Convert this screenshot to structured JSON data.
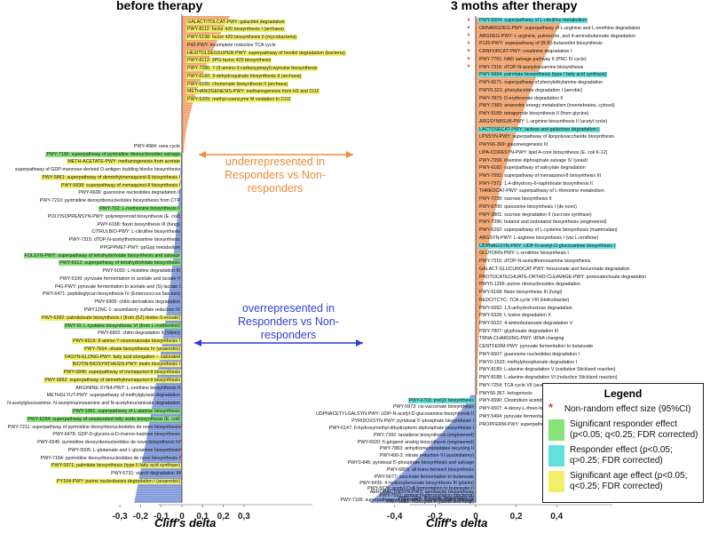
{
  "chart_data": [
    {
      "type": "bar",
      "orientation": "horizontal",
      "title": "before therapy",
      "xlabel": "Cliff's delta",
      "xlim": [
        -0.35,
        0.3
      ],
      "xticks": [
        "-0,3",
        "-0,2",
        "-0,1",
        "0",
        "0,1",
        "0,2",
        "0,3"
      ],
      "xtick_values": [
        -0.3,
        -0.2,
        -0.1,
        0,
        0.1,
        0.2,
        0.3
      ],
      "n_bars": 270,
      "max_positive": 0.23,
      "max_negative": -0.23,
      "positive_color": "#f2a36b",
      "negative_color": "#7d96d8",
      "labels": [
        {
          "text": "GALACTITOLCAT-PWY: galactitol degradation",
          "hl": "yellow",
          "rank": 0.012
        },
        {
          "text": "PWY-8112: factor 420 biosynthesis I (archaea)",
          "hl": "yellow",
          "rank": 0.028
        },
        {
          "text": "PWY-5198: factor 420 biosynthesis II (mycobacteria)",
          "hl": "yellow",
          "rank": 0.044
        },
        {
          "text": "P42-PWY: incomplete reductive TCA cycle",
          "hl": "",
          "rank": 0.06
        },
        {
          "text": "HEXITOLDEGSUPER-PWY: superpathway of hexitol degradation (bacteria)",
          "hl": "yellow",
          "rank": 0.076
        },
        {
          "text": "PWY-8113: 3PG-factor 420 biosynthesis",
          "hl": "yellow",
          "rank": 0.092
        },
        {
          "text": "PWY-7286: 7-(3-amino-3-carboxypropyl)-wyosine biosynthesis",
          "hl": "yellow",
          "rank": 0.108
        },
        {
          "text": "PWY-6160: 3-dehydroquinate biosynthesis II (archaea)",
          "hl": "yellow",
          "rank": 0.124
        },
        {
          "text": "PWY-6165: chorismate biosynthesis II (archaea)",
          "hl": "yellow",
          "rank": 0.14
        },
        {
          "text": "METHANOGENESIS-PWY: methanogenesis from H2 and CO2",
          "hl": "yellow",
          "rank": 0.156
        },
        {
          "text": "PWY-5209: methyl-coenzyme M oxidation to CO2",
          "hl": "yellow",
          "rank": 0.172
        },
        {
          "text": "PWY-4984: urea cycle",
          "hl": "",
          "rank": 0.268
        },
        {
          "text": "PWY-7196: superpathway of pyrimidine ribonucleosides salvage",
          "hl": "green",
          "rank": 0.284
        },
        {
          "text": "METH-ACETATE-PWY: methanogenesis from acetate",
          "hl": "yellow",
          "rank": 0.3
        },
        {
          "text": "superpathway of GDP-mannose-derived O-antigen building blocks biosynthesis",
          "hl": "",
          "rank": 0.316
        },
        {
          "text": "PWY-5861: superpathway of demethylmenaquinol-8 biosynthesis I",
          "hl": "yellow",
          "rank": 0.332
        },
        {
          "text": "PWY-5838: superpathway of menaquinol-8 biosynthesis I",
          "hl": "yellow",
          "rank": 0.348
        },
        {
          "text": "PWY-6606: guanosine nucleotides degradation II",
          "hl": "",
          "rank": 0.364
        },
        {
          "text": "PWY-7210: pyrimidine deoxyribonucleotides biosynthesis from CTP",
          "hl": "",
          "rank": 0.38
        },
        {
          "text": "PWY-702: L-methionine biosynthesis II",
          "hl": "green",
          "rank": 0.396
        },
        {
          "text": "POLYISOPRENSYN-PWY: polyisoprenoid biosynthesis (E. coli)",
          "hl": "",
          "rank": 0.412
        },
        {
          "text": "PWY-6168: flavin biosynthesis III (fungi)",
          "hl": "",
          "rank": 0.428
        },
        {
          "text": "CITRULBIO-PWY: L-citrulline biosynthesis",
          "hl": "",
          "rank": 0.444
        },
        {
          "text": "PWY-7315: dTDP-N-acetylthomosamine biosynthesis",
          "hl": "",
          "rank": 0.46
        },
        {
          "text": "PPGPPMET-PWY: ppGpp metabolism",
          "hl": "",
          "rank": 0.476
        },
        {
          "text": "FOLSYN-PWY: superpathway of tetrahydrofolate biosynthesis and salvage",
          "hl": "green",
          "rank": 0.492
        },
        {
          "text": "PWY-6612: superpathway of tetrahydrofolate biosynthesis",
          "hl": "green",
          "rank": 0.508
        },
        {
          "text": "PWY-5030: L-histidine degradation III",
          "hl": "",
          "rank": 0.524
        },
        {
          "text": "PWY-5100: pyruvate fermentation to acetate and lactate II",
          "hl": "",
          "rank": 0.54
        },
        {
          "text": "P41-PWY: pyruvate fermentation to acetate and (S)-lactate I",
          "hl": "",
          "rank": 0.556
        },
        {
          "text": "PWY-6471: peptidoglycan biosynthesis IV (Enterococcus faecium)",
          "hl": "",
          "rank": 0.572
        },
        {
          "text": "PWY-6906: chitin derivatives degradation",
          "hl": "",
          "rank": 0.588
        },
        {
          "text": "PWY1ZNC-1: assimilatory sulfate reduction IV",
          "hl": "",
          "rank": 0.604
        },
        {
          "text": "PWY-6282: palmitoleate biosynthesis I (from (5Z)-dodec-5-enoate)",
          "hl": "yellow",
          "rank": 0.62
        },
        {
          "text": "PWY-I9: L-cysteine biosynthesis VI (from L-methionine)",
          "hl": "green",
          "rank": 0.636
        },
        {
          "text": "PWY-6902: chitin degradation II (Vibrio)",
          "hl": "",
          "rank": 0.652
        },
        {
          "text": "PWY-6519: 8-amino-7-oxononanoate biosynthesis I",
          "hl": "yellow",
          "rank": 0.668
        },
        {
          "text": "PWY-7664: oleate biosynthesis IV (anaerobic)",
          "hl": "yellow",
          "rank": 0.684
        },
        {
          "text": "FASYN-ELONG-PWY: fatty acid elongation -- saturated",
          "hl": "yellow",
          "rank": 0.7
        },
        {
          "text": "BIOTIN-BIOSYNTHESIS-PWY: biotin biosynthesis I",
          "hl": "yellow",
          "rank": 0.716
        },
        {
          "text": "PWY-5845: superpathway of menaquinol-9 biosynthesis",
          "hl": "yellow",
          "rank": 0.732
        },
        {
          "text": "PWY-5862: superpathway of demethylmenaquinol-9 biosynthesis",
          "hl": "yellow",
          "rank": 0.748
        },
        {
          "text": "ARGININE-SYN4-PWY: L-ornithine biosynthesis II",
          "hl": "",
          "rank": 0.764
        },
        {
          "text": "METHGLYUT-PWY: superpathway of methylglyoxal degradation",
          "hl": "",
          "rank": 0.78
        },
        {
          "text": "N-acetylglucosamine, N-acetylmannosamine and N-acetylneuraminate degradation",
          "hl": "",
          "rank": 0.796
        },
        {
          "text": "PWY-1061: superpathway of L-alanine biosynthesis",
          "hl": "green",
          "rank": 0.812
        },
        {
          "text": "PWY-6284: superpathway of unsaturated fatty acids biosynthesis (E. coli)",
          "hl": "green",
          "rank": 0.828
        },
        {
          "text": "PWY-7211: superpathway of pyrimidine deoxyribonucleotides de novo biosynthesis",
          "hl": "",
          "rank": 0.844
        },
        {
          "text": "PWY-6478: GDP-D-glycero-α-D-manno-heptose biosynthesis",
          "hl": "",
          "rank": 0.86
        },
        {
          "text": "PWY-6545: pyrimidine deoxyribonucleotides de novo biosynthesis IV",
          "hl": "",
          "rank": 0.876
        },
        {
          "text": "PWY-5505: L-glutamate and L-glutamine biosynthesis",
          "hl": "",
          "rank": 0.892
        },
        {
          "text": "PWY-7184: pyrimidine deoxyribonucleotides de novo biosynthesis I",
          "hl": "",
          "rank": 0.908
        },
        {
          "text": "PWY-5971: palmitate biosynthesis (type II fatty acid synthase)",
          "hl": "yellow",
          "rank": 0.924
        },
        {
          "text": "PWY-6731: starch degradation III",
          "hl": "",
          "rank": 0.94
        },
        {
          "text": "PY164-PWY: purine nucleobases degradation I (anaerobic)",
          "hl": "yellow",
          "rank": 0.956
        }
      ],
      "significant_markers": [
        0.846,
        0.876,
        0.891,
        0.908,
        0.924,
        0.94,
        0.956
      ]
    },
    {
      "type": "bar",
      "orientation": "horizontal",
      "title": "3 moths after therapy",
      "xlabel": "Cliff's delta",
      "xlim": [
        -0.55,
        0.5
      ],
      "xticks": [
        "-0,4",
        "-0,2",
        "0",
        "0,2",
        "0,4"
      ],
      "xtick_values": [
        -0.4,
        -0.2,
        0,
        0.2,
        0.4
      ],
      "n_bars": 270,
      "max_positive": 0.43,
      "max_negative": -0.52,
      "positive_color": "#f2a36b",
      "negative_color": "#7d96d8",
      "labels": [
        {
          "text": "PWY-5004: superpathway of L-citrulline metabolism",
          "hl": "cyan",
          "rank": 0.006
        },
        {
          "text": "ORNARGDEG-PWY: superpathway of L-arginine and L-ornithine degradation",
          "hl": "",
          "rank": 0.022
        },
        {
          "text": "ARGDEG-PWY: L-arginine, putrescine, and 4-aminobutanoate degradation",
          "hl": "",
          "rank": 0.038
        },
        {
          "text": "P125-PWY: superpathway of (R,R)-butanediol biosynthesis",
          "hl": "",
          "rank": 0.054
        },
        {
          "text": "CRNFORCAT-PWY: creatinine degradation I",
          "hl": "",
          "rank": 0.07
        },
        {
          "text": "PWY-7761: NAD salvage pathway II (PNC IV cycle)",
          "hl": "",
          "rank": 0.086
        },
        {
          "text": "PWY-7316: dTDP-N-acetylviosamine biosynthesis",
          "hl": "",
          "rank": 0.102
        },
        {
          "text": "PWY-5994: palmitate biosynthesis (type I fatty acid synthase)",
          "hl": "cyan",
          "rank": 0.118
        },
        {
          "text": "PWY-6071: superpathway of phenylethylamine degradation",
          "hl": "",
          "rank": 0.134
        },
        {
          "text": "PWY0-321: phenylacetate degradation I (aerobic)",
          "hl": "",
          "rank": 0.15
        },
        {
          "text": "PWY-7873: D-erythronate degradation II",
          "hl": "",
          "rank": 0.166
        },
        {
          "text": "PWY-7383: anaerobic energy metabolism (invertebrates, cytosol)",
          "hl": "",
          "rank": 0.182
        },
        {
          "text": "PWY-5189: tetrapyrrole biosynthesis II (from glycine)",
          "hl": "",
          "rank": 0.198
        },
        {
          "text": "ARGSYNBSUB-PWY: L-arginine biosynthesis II (acetyl cycle)",
          "hl": "",
          "rank": 0.214
        },
        {
          "text": "LACTOSECAT-PWY: lactose and galactose degradation I",
          "hl": "cyan",
          "rank": 0.23
        },
        {
          "text": "LPSSYN-PWY: superpathway of lipopolysaccharide biosynthesis",
          "hl": "",
          "rank": 0.246
        },
        {
          "text": "PWY66-399: gluconeogenesis III",
          "hl": "",
          "rank": 0.262
        },
        {
          "text": "LIPA-CORESYN-PWY: lipid A-core biosynthesis (E. coli K-12)",
          "hl": "",
          "rank": 0.278
        },
        {
          "text": "PWY-7356: thiamine diphosphate salvage IV (yeast)",
          "hl": "",
          "rank": 0.294
        },
        {
          "text": "PWY-6182: superpathway of salicylate degradation",
          "hl": "",
          "rank": 0.31
        },
        {
          "text": "PWY-7992: superpathway of menaquinol-8 biosynthesis III",
          "hl": "",
          "rank": 0.326
        },
        {
          "text": "PWY-7371: 1,4-dihydroxy-6-naphthoate biosynthesis II",
          "hl": "",
          "rank": 0.342
        },
        {
          "text": "THREOCAT-PWY: superpathway of L-threonine metabolism",
          "hl": "",
          "rank": 0.358
        },
        {
          "text": "PWY-7238: sucrose biosynthesis II",
          "hl": "",
          "rank": 0.374
        },
        {
          "text": "PWY-6700: queuosine biosynthesis I (de novo)",
          "hl": "",
          "rank": 0.39
        },
        {
          "text": "PWY-3801: sucrose degradation II (sucrose synthase)",
          "hl": "",
          "rank": 0.406
        },
        {
          "text": "PWY-7396: butanol and isobutanol biosynthesis (engineered)",
          "hl": "",
          "rank": 0.422
        },
        {
          "text": "PWY-6292: superpathway of L-cysteine biosynthesis (mammalian)",
          "hl": "",
          "rank": 0.438
        },
        {
          "text": "ARGSYN-PWY: L-arginine biosynthesis I (via L-ornithine)",
          "hl": "",
          "rank": 0.454
        },
        {
          "text": "UDPNAGSYN-PWY: UDP-N-acetyl-D-glucosamine biosynthesis I",
          "hl": "cyan",
          "rank": 0.47
        },
        {
          "text": "GLUTORN-PWY: L-ornithine biosynthesis I",
          "hl": "",
          "rank": 0.486
        },
        {
          "text": "PWY-7315: dTDP-N-acetylthomosamine biosynthesis",
          "hl": "",
          "rank": 0.502
        },
        {
          "text": "GALACT-GLUCUROCAT-PWY: hexuronide and hexuronate degradation",
          "hl": "",
          "rank": 0.518
        },
        {
          "text": "PROTOCATECHUATE-ORTHO-CLEAVAGE-PWY: protocatechuate degradation",
          "hl": "",
          "rank": 0.534
        },
        {
          "text": "PWY0-1296: purine ribonucleosides degradation",
          "hl": "",
          "rank": 0.55
        },
        {
          "text": "PWY-6168: flavin biosynthesis III (fungi)",
          "hl": "",
          "rank": 0.566
        },
        {
          "text": "REDCITCYC: TCA cycle VIII (Helicobacter)",
          "hl": "",
          "rank": 0.582
        },
        {
          "text": "PWY-6992: 1,5-anhydrofructose degradation",
          "hl": "",
          "rank": 0.598
        },
        {
          "text": "PWY-6328: L-lysine degradation X",
          "hl": "",
          "rank": 0.614
        },
        {
          "text": "PWY-5022: 4-aminobutanoate degradation V",
          "hl": "",
          "rank": 0.63
        },
        {
          "text": "PWY-7807: glyphosate degradation III",
          "hl": "",
          "rank": 0.646
        },
        {
          "text": "TRNA-CHARGING-PWY: tRNA charging",
          "hl": "",
          "rank": 0.662
        },
        {
          "text": "CENTFERM-PWY: pyruvate fermentation to butanoate",
          "hl": "",
          "rank": 0.678
        },
        {
          "text": "PWY-6607: guanosine nucleotides degradation I",
          "hl": "",
          "rank": 0.694
        },
        {
          "text": "PWY0-1533: methylphosphonate degradation I",
          "hl": "",
          "rank": 0.71
        },
        {
          "text": "PWY-8189: L-alanine degradation V (oxidative Stickland reaction)",
          "hl": "",
          "rank": 0.726
        },
        {
          "text": "PWY-8188: L-alanine degradation VI (reductive Stickland reaction)",
          "hl": "",
          "rank": 0.742
        },
        {
          "text": "PWY-7254: TCA cycle VII (acetate-producers)",
          "hl": "",
          "rank": 0.758
        },
        {
          "text": "PWY66-367: ketogenesis",
          "hl": "",
          "rank": 0.774
        },
        {
          "text": "PWY-6590: Clostridium acetobutylicum acidogenic fermentation",
          "hl": "",
          "rank": 0.79
        },
        {
          "text": "PWY-6507: 4-deoxy-L-threo-hex-4-enopyranuronate degradation",
          "hl": "",
          "rank": 0.806
        },
        {
          "text": "PWY-5494: pyruvate fermentation to propanoate II (acrylate pathway)",
          "hl": "",
          "rank": 0.822
        },
        {
          "text": "PROPFERM-PWY: superpathway of L-alanine fermentation",
          "hl": "",
          "rank": 0.838
        }
      ],
      "labels_negative": [
        {
          "text": "PWY-6703: preQ0 biosynthesis",
          "hl": "cyan",
          "rank": 0.04
        },
        {
          "text": "PWY-5973: cis-vaccenate biosynthesis",
          "hl": "",
          "rank": 0.105
        },
        {
          "text": "UDPNACETYLGALSYN-PWY: UDP-N-acetyl-D-glucosamine biosynthesis II",
          "hl": "",
          "rank": 0.17
        },
        {
          "text": "PYRIDOXSYN-PWY: pyridoxal 5'-phosphate biosynthesis I",
          "hl": "",
          "rank": 0.235
        },
        {
          "text": "PWY-6147: 6-hydroxymethyl-dihydropterin diphosphate biosynthesis I",
          "hl": "",
          "rank": 0.3
        },
        {
          "text": "PWY-7392: taxadiene biosynthesis (engineered)",
          "hl": "",
          "rank": 0.365
        },
        {
          "text": "PWY-6920: 6-gingerol analog biosynthesis (engineered)",
          "hl": "",
          "rank": 0.43
        },
        {
          "text": "PWY-7883: anhydromuropeptides recycling II",
          "hl": "",
          "rank": 0.495
        },
        {
          "text": "PWY490-3: nitrate reduction VI (assimilatory)",
          "hl": "",
          "rank": 0.56
        },
        {
          "text": "PWY0-845: pyridoxal 5'-phosphate biosynthesis and salvage",
          "hl": "",
          "rank": 0.625
        },
        {
          "text": "PWY-6859: all-trans-farnesol biosynthesis",
          "hl": "",
          "rank": 0.69
        },
        {
          "text": "PWY-5677: succinate fermentation to butanoate",
          "hl": "",
          "rank": 0.755
        },
        {
          "text": "PWY-6435: 4-hydroxybenzoate biosynthesis III (plants)",
          "hl": "",
          "rank": 0.82
        },
        {
          "text": "PWY-5676: acetyl-CoA fermentation to butanoate II",
          "hl": "",
          "rank": 0.87
        },
        {
          "text": "AEROBACTINSYN-PWY: aerobactin biosynthesis",
          "hl": "",
          "rank": 0.9
        },
        {
          "text": "PWY-7031: protein N-glycosylation (bacterial)",
          "hl": "",
          "rank": 0.93
        },
        {
          "text": "PWY-7294: D-xylose degradation IV",
          "hl": "",
          "rank": 0.955
        },
        {
          "text": "PWY-7196: superpathway of pyrimidine ribonucleosides salvage",
          "hl": "",
          "rank": 0.975
        },
        {
          "text": "PWY-5690: TCA cycle II (plants and fungi)",
          "hl": "",
          "rank": 0.995
        }
      ],
      "significant_markers": [
        0.006,
        0.022,
        0.038,
        0.054,
        0.07,
        0.086,
        0.102
      ]
    }
  ],
  "annotations": {
    "underrepresented": [
      "underrepresented in",
      "Responders vs Non-",
      "responders"
    ],
    "overrepresented": [
      "overrepresented in",
      "Responders vs Non-",
      "responders"
    ]
  },
  "legend": {
    "title": "Legend",
    "items": [
      {
        "marker": "*",
        "text": "Non-random effect size (95%CI)"
      },
      {
        "color": "#88e17a",
        "text": "Significant responder effect (p<0.05; q<0.25; FDR corrected)"
      },
      {
        "color": "#63e0dc",
        "text": "Responder effect (p<0.05; q>0.25; FDR corrected)"
      },
      {
        "color": "#f2f06a",
        "text": "Significant age effect (p<0.05; q<0.25; FDR corrected)"
      }
    ]
  },
  "colors": {
    "orange": "#ef8a3a",
    "blue": "#2f3fd0",
    "star": "#e23c3c"
  }
}
